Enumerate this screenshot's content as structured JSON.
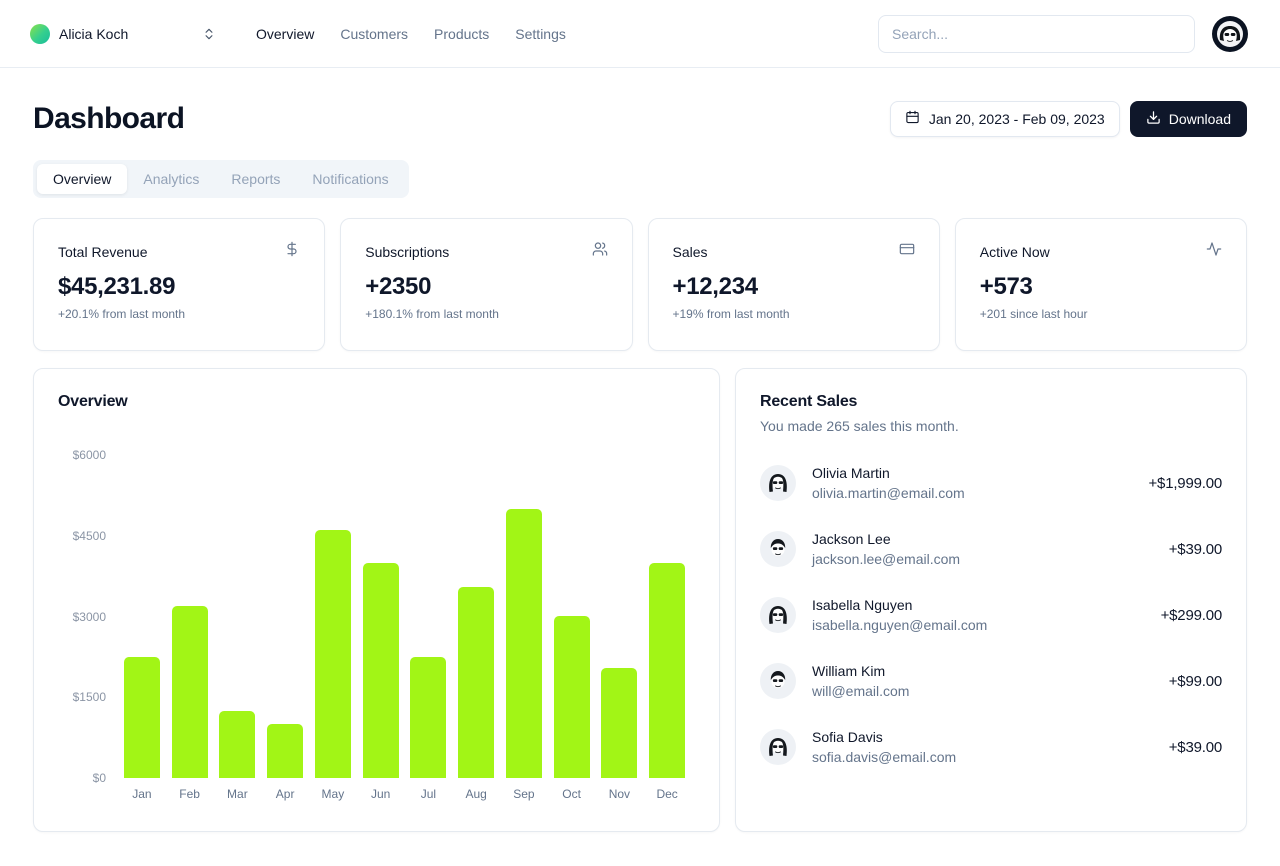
{
  "header": {
    "team": {
      "name": "Alicia Koch"
    },
    "nav": [
      {
        "label": "Overview",
        "active": true
      },
      {
        "label": "Customers",
        "active": false
      },
      {
        "label": "Products",
        "active": false
      },
      {
        "label": "Settings",
        "active": false
      }
    ],
    "search": {
      "placeholder": "Search..."
    }
  },
  "page": {
    "title": "Dashboard",
    "date_range": "Jan 20, 2023 - Feb 09, 2023",
    "download_label": "Download"
  },
  "tabs": [
    {
      "label": "Overview",
      "active": true
    },
    {
      "label": "Analytics",
      "active": false
    },
    {
      "label": "Reports",
      "active": false
    },
    {
      "label": "Notifications",
      "active": false
    }
  ],
  "stats": [
    {
      "title": "Total Revenue",
      "icon": "dollar-sign-icon",
      "value": "$45,231.89",
      "change": "+20.1% from last month"
    },
    {
      "title": "Subscriptions",
      "icon": "users-icon",
      "value": "+2350",
      "change": "+180.1% from last month"
    },
    {
      "title": "Sales",
      "icon": "credit-card-icon",
      "value": "+12,234",
      "change": "+19% from last month"
    },
    {
      "title": "Active Now",
      "icon": "activity-icon",
      "value": "+573",
      "change": "+201 since last hour"
    }
  ],
  "chart_data": {
    "type": "bar",
    "title": "Overview",
    "categories": [
      "Jan",
      "Feb",
      "Mar",
      "Apr",
      "May",
      "Jun",
      "Jul",
      "Aug",
      "Sep",
      "Oct",
      "Nov",
      "Dec"
    ],
    "values": [
      2250,
      3200,
      1250,
      1000,
      4600,
      4000,
      2250,
      3550,
      5000,
      3000,
      2050,
      4000
    ],
    "xlabel": "",
    "ylabel": "",
    "ylim": [
      0,
      6000
    ],
    "y_ticks": [
      {
        "value": 0,
        "label": "$0"
      },
      {
        "value": 1500,
        "label": "$1500"
      },
      {
        "value": 3000,
        "label": "$3000"
      },
      {
        "value": 4500,
        "label": "$4500"
      },
      {
        "value": 6000,
        "label": "$6000"
      }
    ],
    "bar_color": "#a2f516",
    "grid": false,
    "legend": false
  },
  "recent_sales": {
    "title": "Recent Sales",
    "subtitle": "You made 265 sales this month.",
    "items": [
      {
        "name": "Olivia Martin",
        "email": "olivia.martin@email.com",
        "amount": "+$1,999.00"
      },
      {
        "name": "Jackson Lee",
        "email": "jackson.lee@email.com",
        "amount": "+$39.00"
      },
      {
        "name": "Isabella Nguyen",
        "email": "isabella.nguyen@email.com",
        "amount": "+$299.00"
      },
      {
        "name": "William Kim",
        "email": "will@email.com",
        "amount": "+$99.00"
      },
      {
        "name": "Sofia Davis",
        "email": "sofia.davis@email.com",
        "amount": "+$39.00"
      }
    ]
  },
  "colors": {
    "accent_lime": "#a2f516",
    "dark": "#0f172a",
    "muted": "#64748b",
    "border": "#e2e8f0"
  }
}
